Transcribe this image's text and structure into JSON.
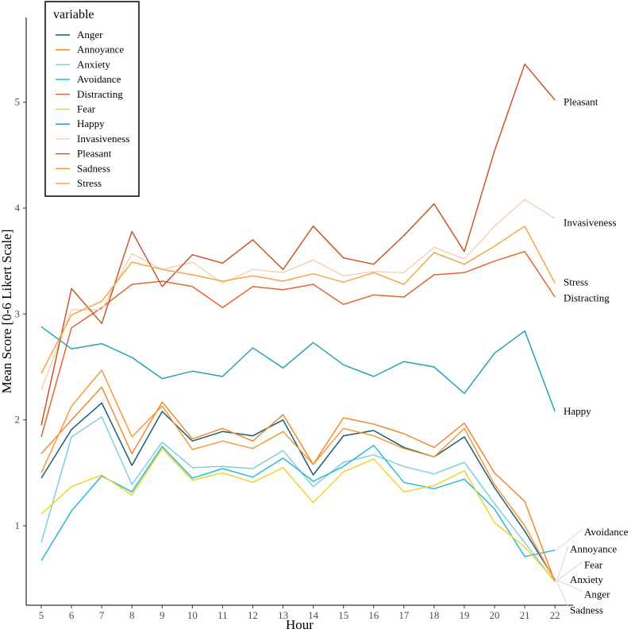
{
  "chart_data": {
    "type": "line",
    "xlabel": "Hour",
    "ylabel": "Mean Score [0-6 Likert Scale]",
    "x": [
      5,
      6,
      7,
      8,
      9,
      10,
      11,
      12,
      13,
      14,
      15,
      16,
      17,
      18,
      19,
      20,
      21,
      22
    ],
    "xlim": [
      4.5,
      22.6
    ],
    "ylim": [
      0.25,
      5.8
    ],
    "yticks": [
      1,
      2,
      3,
      4,
      5
    ],
    "legend": {
      "title": "variable",
      "placement": "top-left"
    },
    "series": [
      {
        "name": "Anger",
        "color": "#1a5e72",
        "values": [
          1.45,
          1.91,
          2.16,
          1.57,
          2.08,
          1.8,
          1.89,
          1.85,
          2.0,
          1.48,
          1.85,
          1.9,
          1.74,
          1.65,
          1.84,
          1.36,
          0.95,
          0.49
        ]
      },
      {
        "name": "Annoyance",
        "color": "#f08a30",
        "values": [
          1.68,
          2.0,
          2.31,
          1.68,
          2.17,
          1.82,
          1.92,
          1.8,
          2.05,
          1.58,
          2.02,
          1.96,
          1.87,
          1.74,
          1.97,
          1.5,
          1.23,
          0.47
        ]
      },
      {
        "name": "Anxiety",
        "color": "#7fcfe0",
        "values": [
          0.84,
          1.84,
          2.03,
          1.39,
          1.79,
          1.55,
          1.56,
          1.54,
          1.71,
          1.37,
          1.6,
          1.67,
          1.56,
          1.49,
          1.6,
          1.21,
          0.84,
          0.47
        ]
      },
      {
        "name": "Avoidance",
        "color": "#28b8dc",
        "values": [
          0.67,
          1.14,
          1.47,
          1.32,
          1.75,
          1.45,
          1.54,
          1.46,
          1.64,
          1.42,
          1.56,
          1.76,
          1.41,
          1.35,
          1.44,
          1.16,
          0.71,
          0.77
        ]
      },
      {
        "name": "Distracting",
        "color": "#e8642e",
        "values": [
          1.84,
          2.87,
          3.06,
          3.28,
          3.31,
          3.26,
          3.06,
          3.26,
          3.23,
          3.28,
          3.09,
          3.18,
          3.16,
          3.37,
          3.39,
          3.5,
          3.59,
          3.16
        ]
      },
      {
        "name": "Fear",
        "color": "#f2d22a",
        "values": [
          1.11,
          1.37,
          1.48,
          1.29,
          1.73,
          1.43,
          1.5,
          1.41,
          1.55,
          1.22,
          1.51,
          1.63,
          1.32,
          1.38,
          1.52,
          1.03,
          0.8,
          0.48
        ]
      },
      {
        "name": "Happy",
        "color": "#23a4b0",
        "values": [
          2.88,
          2.67,
          2.72,
          2.59,
          2.39,
          2.46,
          2.41,
          2.68,
          2.49,
          2.73,
          2.52,
          2.41,
          2.55,
          2.5,
          2.25,
          2.63,
          2.84,
          2.08
        ]
      },
      {
        "name": "Invasiveness",
        "color": "#f4d2b6",
        "values": [
          2.28,
          3.04,
          3.04,
          3.57,
          3.42,
          3.49,
          3.29,
          3.42,
          3.39,
          3.51,
          3.36,
          3.4,
          3.39,
          3.63,
          3.52,
          3.83,
          4.08,
          3.9
        ]
      },
      {
        "name": "Pleasant",
        "color": "#c9562e",
        "values": [
          1.95,
          3.24,
          2.91,
          3.78,
          3.26,
          3.56,
          3.48,
          3.7,
          3.42,
          3.83,
          3.53,
          3.47,
          3.74,
          4.04,
          3.59,
          4.54,
          5.36,
          5.02
        ]
      },
      {
        "name": "Sadness",
        "color": "#f39a3a",
        "values": [
          1.5,
          2.13,
          2.47,
          1.84,
          2.13,
          1.72,
          1.8,
          1.73,
          1.89,
          1.58,
          1.92,
          1.85,
          1.73,
          1.65,
          1.92,
          1.39,
          1.0,
          0.48
        ]
      },
      {
        "name": "Stress",
        "color": "#f7a545",
        "values": [
          2.44,
          2.99,
          3.12,
          3.49,
          3.42,
          3.37,
          3.31,
          3.36,
          3.31,
          3.38,
          3.3,
          3.39,
          3.28,
          3.58,
          3.47,
          3.64,
          3.83,
          3.29
        ]
      }
    ],
    "end_labels": [
      {
        "text": "Pleasant",
        "value": 5.0
      },
      {
        "text": "Invasiveness",
        "value": 3.86
      },
      {
        "text": "Stress",
        "value": 3.3
      },
      {
        "text": "Distracting",
        "value": 3.15
      },
      {
        "text": "Happy",
        "value": 2.08
      },
      {
        "text": "Avoidance",
        "value": 0.94
      },
      {
        "text": "Annoyance",
        "value": 0.78
      },
      {
        "text": "Fear",
        "value": 0.63
      },
      {
        "text": "Anxiety",
        "value": 0.49
      },
      {
        "text": "Anger",
        "value": 0.35
      },
      {
        "text": "Sadness",
        "value": 0.2
      }
    ]
  }
}
